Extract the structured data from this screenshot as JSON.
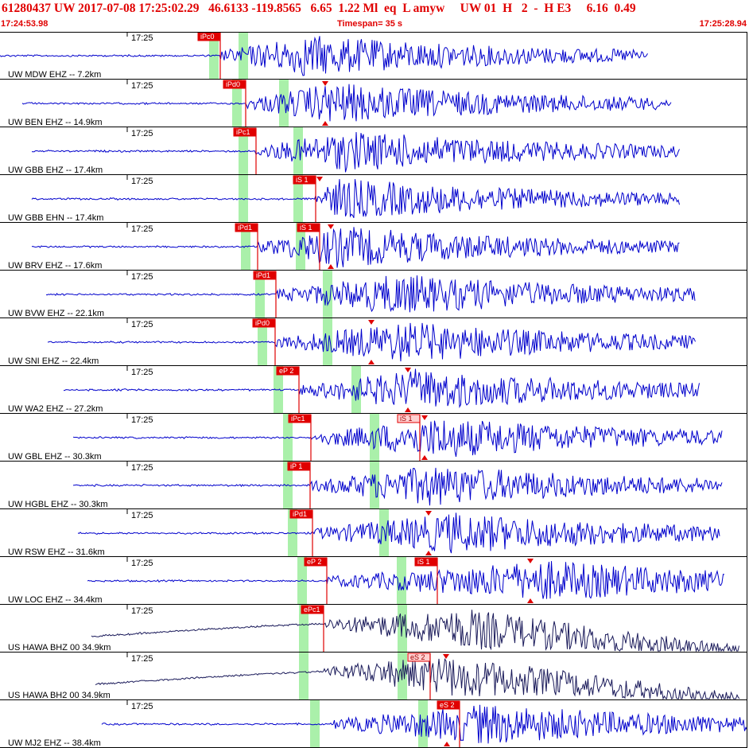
{
  "header": {
    "event_line": "61280437 UW 2017-07-08 17:25:02.29   46.6133 -119.8565   6.65  1.22 Ml  eq  L amyw     UW 01  H   2  -  H E3     6.16  0.49",
    "start_time": "17:24:53.98",
    "timespan": "Timespan=  35 s",
    "end_time": "17:25:28.94"
  },
  "colors": {
    "header_text": "#e00000",
    "trace": "#0000cc",
    "trace_dark": "#1a1a5a",
    "pick_box": "#e00000",
    "pick_box_light": "#ffd0d0",
    "pick_line": "#e00000",
    "band": "#aaf0aa",
    "separator": "#000000"
  },
  "rows": [
    {
      "station": "UW MDW EHZ -- 7.2km",
      "time": "17:25",
      "trace_dark": false,
      "bands": [
        269,
        306
      ],
      "picks": [
        {
          "label": "iPc0",
          "x": 277,
          "boxed": true,
          "light": false,
          "line": true
        }
      ],
      "markers": []
    },
    {
      "station": "UW BEN EHZ -- 14.9km",
      "time": "17:25",
      "trace_dark": false,
      "bands": [
        298,
        357
      ],
      "picks": [
        {
          "label": "iPd0",
          "x": 309,
          "boxed": true,
          "light": false,
          "line": true
        }
      ],
      "markers": [
        {
          "x": 409,
          "dir": "down",
          "top": true
        },
        {
          "x": 409,
          "dir": "up",
          "top": false
        }
      ]
    },
    {
      "station": "UW GBB EHZ -- 17.4km",
      "time": "17:25",
      "trace_dark": false,
      "bands": [
        306,
        375
      ],
      "picks": [
        {
          "label": "iPc1",
          "x": 322,
          "boxed": true,
          "light": false,
          "line": true
        }
      ],
      "markers": []
    },
    {
      "station": "UW GBB EHN -- 17.4km",
      "time": "17:25",
      "trace_dark": false,
      "bands": [
        306,
        375
      ],
      "picks": [
        {
          "label": "iS 1",
          "x": 397,
          "boxed": true,
          "light": false,
          "line": true
        }
      ],
      "markers": [
        {
          "x": 402,
          "dir": "down",
          "top": true
        }
      ]
    },
    {
      "station": "UW BRV EHZ -- 17.6km",
      "time": "17:25",
      "trace_dark": false,
      "bands": [
        309,
        378
      ],
      "picks": [
        {
          "label": "iPd1",
          "x": 324,
          "boxed": true,
          "light": false,
          "line": true
        },
        {
          "label": "iS 1",
          "x": 402,
          "boxed": true,
          "light": false,
          "line": true
        }
      ],
      "markers": [
        {
          "x": 416,
          "dir": "down",
          "top": true
        },
        {
          "x": 416,
          "dir": "up",
          "top": false
        }
      ]
    },
    {
      "station": "UW BVW EHZ -- 22.1km",
      "time": "17:25",
      "trace_dark": false,
      "bands": [
        327,
        412
      ],
      "picks": [
        {
          "label": "iPd1",
          "x": 347,
          "boxed": true,
          "light": false,
          "line": true
        }
      ],
      "markers": []
    },
    {
      "station": "UW SNI EHZ -- 22.4km",
      "time": "17:25",
      "trace_dark": false,
      "bands": [
        330,
        412
      ],
      "picks": [
        {
          "label": "iPd0",
          "x": 346,
          "boxed": true,
          "light": false,
          "line": true
        }
      ],
      "markers": [
        {
          "x": 467,
          "dir": "down",
          "top": true
        },
        {
          "x": 467,
          "dir": "up",
          "top": false
        }
      ]
    },
    {
      "station": "UW WA2 EHZ -- 27.2km",
      "time": "17:25",
      "trace_dark": false,
      "bands": [
        350,
        448
      ],
      "picks": [
        {
          "label": "eP 2",
          "x": 376,
          "boxed": true,
          "light": false,
          "line": true
        }
      ],
      "markers": [
        {
          "x": 513,
          "dir": "down",
          "top": true
        },
        {
          "x": 513,
          "dir": "up",
          "top": false
        }
      ]
    },
    {
      "station": "UW GBL EHZ -- 30.3km",
      "time": "17:25",
      "trace_dark": false,
      "bands": [
        362,
        471
      ],
      "picks": [
        {
          "label": "iPc1",
          "x": 391,
          "boxed": true,
          "light": false,
          "line": true
        },
        {
          "label": "iS 1",
          "x": 528,
          "boxed": true,
          "light": true,
          "line": true
        }
      ],
      "markers": [
        {
          "x": 534,
          "dir": "down",
          "top": true
        },
        {
          "x": 534,
          "dir": "up",
          "top": false
        }
      ]
    },
    {
      "station": "UW HGBL EHZ -- 30.3km",
      "time": "17:25",
      "trace_dark": false,
      "bands": [
        362,
        471
      ],
      "picks": [
        {
          "label": "iP 1",
          "x": 390,
          "boxed": true,
          "light": false,
          "line": true
        }
      ],
      "markers": []
    },
    {
      "station": "UW RSW EHZ -- 31.6km",
      "time": "17:25",
      "trace_dark": false,
      "bands": [
        368,
        483
      ],
      "picks": [
        {
          "label": "iPd1",
          "x": 393,
          "boxed": true,
          "light": false,
          "line": true
        }
      ],
      "markers": [
        {
          "x": 539,
          "dir": "down",
          "top": true
        },
        {
          "x": 539,
          "dir": "up",
          "top": false
        }
      ]
    },
    {
      "station": "UW LOC EHZ -- 34.4km",
      "time": "17:25",
      "trace_dark": false,
      "bands": [
        380,
        505
      ],
      "picks": [
        {
          "label": "eP 2",
          "x": 411,
          "boxed": true,
          "light": false,
          "line": true
        },
        {
          "label": "iS 1",
          "x": 550,
          "boxed": true,
          "light": false,
          "line": true
        }
      ],
      "markers": [
        {
          "x": 667,
          "dir": "down",
          "top": true
        },
        {
          "x": 667,
          "dir": "up",
          "top": false
        }
      ]
    },
    {
      "station": "US HAWA BHZ 00 34.9km",
      "time": "17:25",
      "trace_dark": true,
      "bands": [
        382,
        506
      ],
      "picks": [
        {
          "label": "ePc1",
          "x": 407,
          "boxed": true,
          "light": false,
          "line": true
        }
      ],
      "markers": []
    },
    {
      "station": "US HAWA BH2 00 34.9km",
      "time": "17:25",
      "trace_dark": true,
      "bands": [
        382,
        506
      ],
      "picks": [
        {
          "label": "eS 2",
          "x": 541,
          "boxed": true,
          "light": true,
          "line": true
        }
      ],
      "markers": [
        {
          "x": 561,
          "dir": "down",
          "top": true
        }
      ]
    },
    {
      "station": "UW MJ2 EHZ -- 38.4km",
      "time": "17:25",
      "trace_dark": false,
      "bands": [
        396,
        532
      ],
      "picks": [
        {
          "label": "eS 2",
          "x": 578,
          "boxed": true,
          "light": false,
          "line": true
        }
      ],
      "markers": [
        {
          "x": 562,
          "dir": "up",
          "top": false
        }
      ]
    }
  ]
}
